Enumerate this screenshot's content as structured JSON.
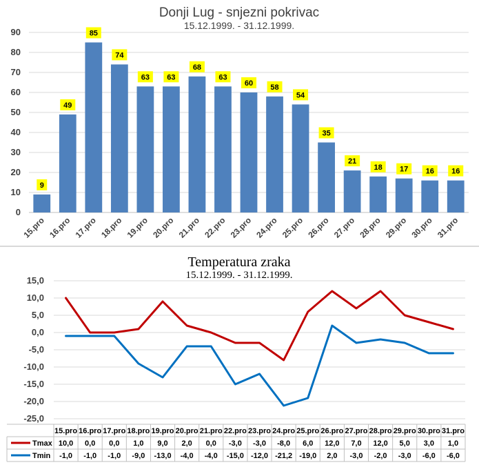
{
  "chart_data": [
    {
      "type": "bar",
      "title": "Donji Lug - snjezni pokrivac",
      "subtitle": "15.12.1999. - 31.12.1999.",
      "categories": [
        "15.pro",
        "16.pro",
        "17.pro",
        "18.pro",
        "19.pro",
        "20.pro",
        "21.pro",
        "22.pro",
        "23.pro",
        "24.pro",
        "25.pro",
        "26.pro",
        "27.pro",
        "28.pro",
        "29.pro",
        "30.pro",
        "31.pro"
      ],
      "values": [
        9,
        49,
        85,
        74,
        63,
        63,
        68,
        63,
        60,
        58,
        54,
        35,
        21,
        18,
        17,
        16,
        16
      ],
      "ylim": [
        0,
        90
      ],
      "yticks": [
        0,
        10,
        20,
        30,
        40,
        50,
        60,
        70,
        80,
        90
      ],
      "grid": true,
      "colors": {
        "bar": "#4f81bd",
        "label_bg": "#ffff00",
        "grid": "#d9d9d9",
        "axis": "#bfbfbf"
      }
    },
    {
      "type": "line",
      "title": "Temperatura zraka",
      "subtitle": "15.12.1999. - 31.12.1999.",
      "categories": [
        "15.pro",
        "16.pro",
        "17.pro",
        "18.pro",
        "19.pro",
        "20.pro",
        "21.pro",
        "22.pro",
        "23.pro",
        "24.pro",
        "25.pro",
        "26.pro",
        "27.pro",
        "28.pro",
        "29.pro",
        "30.pro",
        "31.pro"
      ],
      "series": [
        {
          "name": "Tmax",
          "values": [
            10,
            0,
            0,
            1,
            9,
            2,
            0,
            -3,
            -3,
            -8,
            6,
            12,
            7,
            12,
            5,
            3,
            1
          ],
          "labels": [
            "10,0",
            "0,0",
            "0,0",
            "1,0",
            "9,0",
            "2,0",
            "0,0",
            "-3,0",
            "-3,0",
            "-8,0",
            "6,0",
            "12,0",
            "7,0",
            "12,0",
            "5,0",
            "3,0",
            "1,0"
          ],
          "color": "#c00000"
        },
        {
          "name": "Tmin",
          "values": [
            -1,
            -1,
            -1,
            -9,
            -13,
            -4,
            -4,
            -15,
            -12,
            -21.2,
            -19,
            2,
            -3,
            -2,
            -3,
            -6,
            -6
          ],
          "labels": [
            "-1,0",
            "-1,0",
            "-1,0",
            "-9,0",
            "-13,0",
            "-4,0",
            "-4,0",
            "-15,0",
            "-12,0",
            "-21,2",
            "-19,0",
            "2,0",
            "-3,0",
            "-2,0",
            "-3,0",
            "-6,0",
            "-6,0"
          ],
          "color": "#0070c0"
        }
      ],
      "ylim": [
        -25,
        15
      ],
      "yticks": [
        15,
        10,
        5,
        0,
        -5,
        -10,
        -15,
        -20,
        -25
      ],
      "ytick_labels": [
        "15,0",
        "10,0",
        "5,0",
        "0,0",
        "-5,0",
        "-10,0",
        "-15,0",
        "-20,0",
        "-25,0"
      ],
      "grid": true,
      "legend": "data-table",
      "colors": {
        "grid": "#d9d9d9",
        "table": "#bfbfbf"
      }
    }
  ]
}
